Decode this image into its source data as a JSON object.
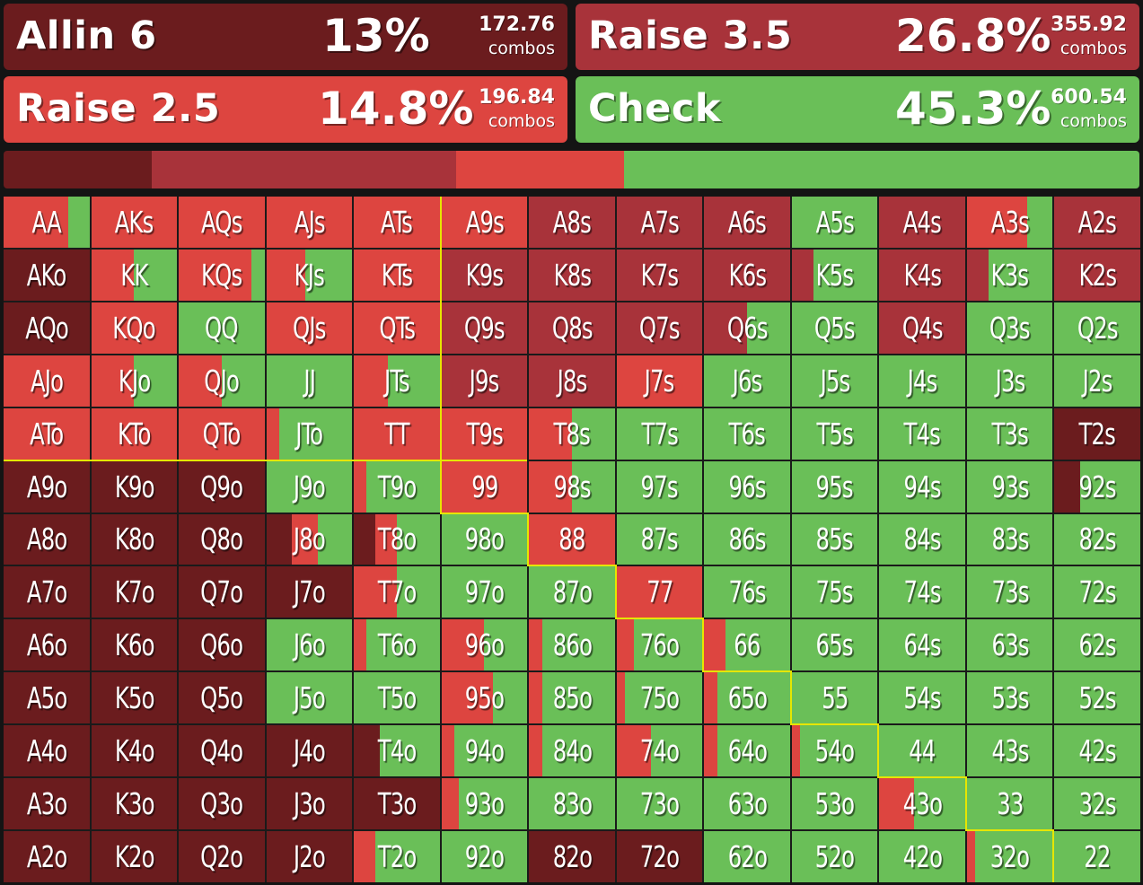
{
  "colors": {
    "allin": "#6b1c1e",
    "raise35": "#a8333a",
    "raise25": "#dd4540",
    "check": "#6abf58"
  },
  "actions": [
    {
      "id": "allin",
      "name": "Allin 6",
      "percent": "13%",
      "combos": "172.76",
      "combos_label": "combos",
      "color": "#6b1c1e"
    },
    {
      "id": "raise35",
      "name": "Raise 3.5",
      "percent": "26.8%",
      "combos": "355.92",
      "combos_label": "combos",
      "color": "#a8333a"
    },
    {
      "id": "raise25",
      "name": "Raise 2.5",
      "percent": "14.8%",
      "combos": "196.84",
      "combos_label": "combos",
      "color": "#dd4540"
    },
    {
      "id": "check",
      "name": "Check",
      "percent": "45.3%",
      "combos": "600.54",
      "combos_label": "combos",
      "color": "#6abf58"
    }
  ],
  "distribution": [
    13,
    26.8,
    14.8,
    45.3
  ],
  "matrix": {
    "hands": [
      [
        "AA",
        "AKs",
        "AQs",
        "AJs",
        "ATs",
        "A9s",
        "A8s",
        "A7s",
        "A6s",
        "A5s",
        "A4s",
        "A3s",
        "A2s"
      ],
      [
        "AKo",
        "KK",
        "KQs",
        "KJs",
        "KTs",
        "K9s",
        "K8s",
        "K7s",
        "K6s",
        "K5s",
        "K4s",
        "K3s",
        "K2s"
      ],
      [
        "AQo",
        "KQo",
        "QQ",
        "QJs",
        "QTs",
        "Q9s",
        "Q8s",
        "Q7s",
        "Q6s",
        "Q5s",
        "Q4s",
        "Q3s",
        "Q2s"
      ],
      [
        "AJo",
        "KJo",
        "QJo",
        "JJ",
        "JTs",
        "J9s",
        "J8s",
        "J7s",
        "J6s",
        "J5s",
        "J4s",
        "J3s",
        "J2s"
      ],
      [
        "ATo",
        "KTo",
        "QTo",
        "JTo",
        "TT",
        "T9s",
        "T8s",
        "T7s",
        "T6s",
        "T5s",
        "T4s",
        "T3s",
        "T2s"
      ],
      [
        "A9o",
        "K9o",
        "Q9o",
        "J9o",
        "T9o",
        "99",
        "98s",
        "97s",
        "96s",
        "95s",
        "94s",
        "93s",
        "92s"
      ],
      [
        "A8o",
        "K8o",
        "Q8o",
        "J8o",
        "T8o",
        "98o",
        "88",
        "87s",
        "86s",
        "85s",
        "84s",
        "83s",
        "82s"
      ],
      [
        "A7o",
        "K7o",
        "Q7o",
        "J7o",
        "T7o",
        "97o",
        "87o",
        "77",
        "76s",
        "75s",
        "74s",
        "73s",
        "72s"
      ],
      [
        "A6o",
        "K6o",
        "Q6o",
        "J6o",
        "T6o",
        "96o",
        "86o",
        "76o",
        "66",
        "65s",
        "64s",
        "63s",
        "62s"
      ],
      [
        "A5o",
        "K5o",
        "Q5o",
        "J5o",
        "T5o",
        "95o",
        "85o",
        "75o",
        "65o",
        "55",
        "54s",
        "53s",
        "52s"
      ],
      [
        "A4o",
        "K4o",
        "Q4o",
        "J4o",
        "T4o",
        "94o",
        "84o",
        "74o",
        "64o",
        "54o",
        "44",
        "43s",
        "42s"
      ],
      [
        "A3o",
        "K3o",
        "Q3o",
        "J3o",
        "T3o",
        "93o",
        "83o",
        "73o",
        "63o",
        "53o",
        "43o",
        "33",
        "32s"
      ],
      [
        "A2o",
        "K2o",
        "Q2o",
        "J2o",
        "T2o",
        "92o",
        "82o",
        "72o",
        "62o",
        "52o",
        "42o",
        "32o",
        "22"
      ]
    ],
    "freqs": [
      [
        [
          0,
          0,
          75,
          25
        ],
        [
          0,
          0,
          100,
          0
        ],
        [
          0,
          0,
          100,
          0
        ],
        [
          0,
          0,
          100,
          0
        ],
        [
          0,
          0,
          100,
          0
        ],
        [
          0,
          0,
          100,
          0
        ],
        [
          0,
          100,
          0,
          0
        ],
        [
          0,
          100,
          0,
          0
        ],
        [
          0,
          100,
          0,
          0
        ],
        [
          0,
          0,
          0,
          100
        ],
        [
          0,
          100,
          0,
          0
        ],
        [
          0,
          0,
          70,
          30
        ],
        [
          0,
          100,
          0,
          0
        ]
      ],
      [
        [
          100,
          0,
          0,
          0
        ],
        [
          0,
          0,
          50,
          50
        ],
        [
          0,
          0,
          85,
          15
        ],
        [
          0,
          0,
          45,
          55
        ],
        [
          0,
          0,
          100,
          0
        ],
        [
          0,
          100,
          0,
          0
        ],
        [
          0,
          100,
          0,
          0
        ],
        [
          0,
          100,
          0,
          0
        ],
        [
          0,
          100,
          0,
          0
        ],
        [
          0,
          25,
          0,
          75
        ],
        [
          0,
          100,
          0,
          0
        ],
        [
          0,
          25,
          0,
          75
        ],
        [
          0,
          100,
          0,
          0
        ]
      ],
      [
        [
          100,
          0,
          0,
          0
        ],
        [
          0,
          0,
          100,
          0
        ],
        [
          0,
          0,
          0,
          100
        ],
        [
          0,
          0,
          100,
          0
        ],
        [
          0,
          0,
          100,
          0
        ],
        [
          0,
          100,
          0,
          0
        ],
        [
          0,
          100,
          0,
          0
        ],
        [
          0,
          100,
          0,
          0
        ],
        [
          0,
          50,
          0,
          50
        ],
        [
          0,
          0,
          0,
          100
        ],
        [
          0,
          100,
          0,
          0
        ],
        [
          0,
          0,
          0,
          100
        ],
        [
          0,
          0,
          0,
          100
        ]
      ],
      [
        [
          0,
          0,
          100,
          0
        ],
        [
          0,
          0,
          50,
          50
        ],
        [
          0,
          0,
          50,
          50
        ],
        [
          0,
          0,
          0,
          100
        ],
        [
          0,
          0,
          40,
          60
        ],
        [
          0,
          100,
          0,
          0
        ],
        [
          0,
          100,
          0,
          0
        ],
        [
          0,
          0,
          100,
          0
        ],
        [
          0,
          0,
          0,
          100
        ],
        [
          0,
          0,
          0,
          100
        ],
        [
          0,
          0,
          0,
          100
        ],
        [
          0,
          0,
          0,
          100
        ],
        [
          0,
          0,
          0,
          100
        ]
      ],
      [
        [
          0,
          0,
          100,
          0
        ],
        [
          0,
          0,
          100,
          0
        ],
        [
          0,
          0,
          100,
          0
        ],
        [
          0,
          0,
          15,
          85
        ],
        [
          0,
          0,
          100,
          0
        ],
        [
          0,
          0,
          100,
          0
        ],
        [
          0,
          0,
          50,
          50
        ],
        [
          0,
          0,
          0,
          100
        ],
        [
          0,
          0,
          0,
          100
        ],
        [
          0,
          0,
          0,
          100
        ],
        [
          0,
          0,
          0,
          100
        ],
        [
          0,
          0,
          0,
          100
        ],
        [
          100,
          0,
          0,
          0
        ]
      ],
      [
        [
          100,
          0,
          0,
          0
        ],
        [
          100,
          0,
          0,
          0
        ],
        [
          100,
          0,
          0,
          0
        ],
        [
          0,
          0,
          0,
          100
        ],
        [
          0,
          0,
          15,
          85
        ],
        [
          0,
          0,
          100,
          0
        ],
        [
          0,
          0,
          50,
          50
        ],
        [
          0,
          0,
          0,
          100
        ],
        [
          0,
          0,
          0,
          100
        ],
        [
          0,
          0,
          0,
          100
        ],
        [
          0,
          0,
          0,
          100
        ],
        [
          0,
          0,
          0,
          100
        ],
        [
          30,
          0,
          0,
          70
        ]
      ],
      [
        [
          100,
          0,
          0,
          0
        ],
        [
          100,
          0,
          0,
          0
        ],
        [
          100,
          0,
          0,
          0
        ],
        [
          30,
          0,
          30,
          40
        ],
        [
          25,
          0,
          25,
          50
        ],
        [
          0,
          0,
          0,
          100
        ],
        [
          0,
          0,
          100,
          0
        ],
        [
          0,
          0,
          0,
          100
        ],
        [
          0,
          0,
          0,
          100
        ],
        [
          0,
          0,
          0,
          100
        ],
        [
          0,
          0,
          0,
          100
        ],
        [
          0,
          0,
          0,
          100
        ],
        [
          0,
          0,
          0,
          100
        ]
      ],
      [
        [
          100,
          0,
          0,
          0
        ],
        [
          100,
          0,
          0,
          0
        ],
        [
          100,
          0,
          0,
          0
        ],
        [
          100,
          0,
          0,
          0
        ],
        [
          0,
          0,
          50,
          50
        ],
        [
          0,
          0,
          0,
          100
        ],
        [
          0,
          0,
          0,
          100
        ],
        [
          0,
          0,
          100,
          0
        ],
        [
          0,
          0,
          0,
          100
        ],
        [
          0,
          0,
          0,
          100
        ],
        [
          0,
          0,
          0,
          100
        ],
        [
          0,
          0,
          0,
          100
        ],
        [
          0,
          0,
          0,
          100
        ]
      ],
      [
        [
          100,
          0,
          0,
          0
        ],
        [
          100,
          0,
          0,
          0
        ],
        [
          100,
          0,
          0,
          0
        ],
        [
          0,
          0,
          0,
          100
        ],
        [
          0,
          0,
          15,
          85
        ],
        [
          0,
          0,
          50,
          50
        ],
        [
          0,
          0,
          15,
          85
        ],
        [
          0,
          0,
          20,
          80
        ],
        [
          0,
          0,
          25,
          75
        ],
        [
          0,
          0,
          0,
          100
        ],
        [
          0,
          0,
          0,
          100
        ],
        [
          0,
          0,
          0,
          100
        ],
        [
          0,
          0,
          0,
          100
        ]
      ],
      [
        [
          100,
          0,
          0,
          0
        ],
        [
          100,
          0,
          0,
          0
        ],
        [
          100,
          0,
          0,
          0
        ],
        [
          0,
          0,
          0,
          100
        ],
        [
          0,
          0,
          0,
          100
        ],
        [
          0,
          0,
          60,
          40
        ],
        [
          0,
          0,
          15,
          85
        ],
        [
          0,
          0,
          10,
          90
        ],
        [
          0,
          0,
          15,
          85
        ],
        [
          0,
          0,
          0,
          100
        ],
        [
          0,
          0,
          0,
          100
        ],
        [
          0,
          0,
          0,
          100
        ],
        [
          0,
          0,
          0,
          100
        ]
      ],
      [
        [
          100,
          0,
          0,
          0
        ],
        [
          100,
          0,
          0,
          0
        ],
        [
          100,
          0,
          0,
          0
        ],
        [
          100,
          0,
          0,
          0
        ],
        [
          30,
          0,
          0,
          70
        ],
        [
          0,
          0,
          15,
          85
        ],
        [
          0,
          0,
          15,
          85
        ],
        [
          0,
          0,
          40,
          60
        ],
        [
          0,
          0,
          15,
          85
        ],
        [
          0,
          0,
          10,
          90
        ],
        [
          0,
          0,
          0,
          100
        ],
        [
          0,
          0,
          0,
          100
        ],
        [
          0,
          0,
          0,
          100
        ]
      ],
      [
        [
          100,
          0,
          0,
          0
        ],
        [
          100,
          0,
          0,
          0
        ],
        [
          100,
          0,
          0,
          0
        ],
        [
          100,
          0,
          0,
          0
        ],
        [
          100,
          0,
          0,
          0
        ],
        [
          0,
          0,
          20,
          80
        ],
        [
          0,
          0,
          0,
          100
        ],
        [
          0,
          0,
          0,
          100
        ],
        [
          0,
          0,
          0,
          100
        ],
        [
          0,
          0,
          0,
          100
        ],
        [
          0,
          0,
          40,
          60
        ],
        [
          0,
          0,
          0,
          100
        ],
        [
          0,
          0,
          0,
          100
        ]
      ],
      [
        [
          100,
          0,
          0,
          0
        ],
        [
          100,
          0,
          0,
          0
        ],
        [
          100,
          0,
          0,
          0
        ],
        [
          100,
          0,
          0,
          0
        ],
        [
          0,
          0,
          25,
          75
        ],
        [
          0,
          0,
          0,
          100
        ],
        [
          100,
          0,
          0,
          0
        ],
        [
          100,
          0,
          0,
          0
        ],
        [
          0,
          0,
          0,
          100
        ],
        [
          0,
          0,
          0,
          100
        ],
        [
          0,
          0,
          0,
          100
        ],
        [
          0,
          0,
          10,
          90
        ],
        [
          0,
          0,
          0,
          100
        ]
      ]
    ]
  }
}
